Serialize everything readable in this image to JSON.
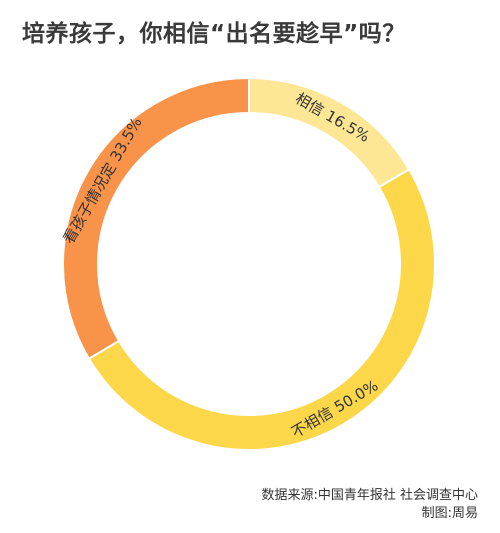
{
  "title": "培养孩子，你相信“出名要趁早”吗？",
  "chart_data": {
    "type": "pie",
    "donut": true,
    "slices": [
      {
        "label": "相信",
        "percent_label": "16.5%",
        "value": 16.5,
        "color": "#fde694"
      },
      {
        "label": "不相信",
        "percent_label": "50.0%",
        "value": 50.0,
        "color": "#fdd74a"
      },
      {
        "label": "看孩子情况定",
        "percent_label": "33.5%",
        "value": 33.5,
        "color": "#f9934a"
      }
    ]
  },
  "footer": {
    "source": "数据来源:中国青年报社 社会调查中心",
    "credit": "制图:周易"
  }
}
